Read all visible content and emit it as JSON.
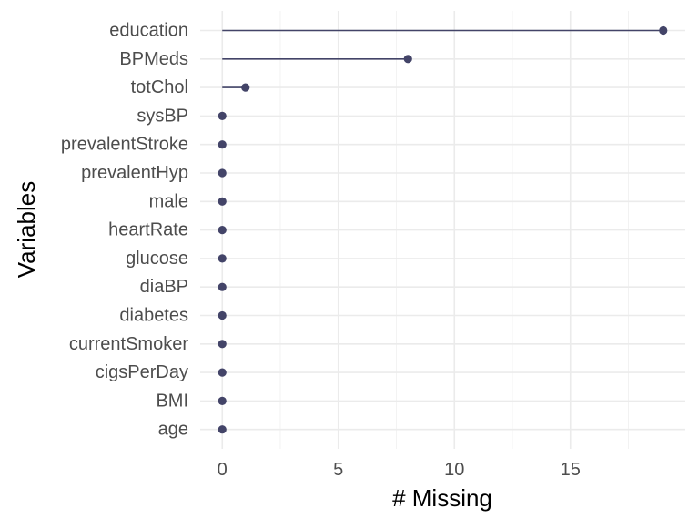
{
  "chart_data": {
    "type": "lollipop",
    "title": "",
    "xlabel": "# Missing",
    "ylabel": "Variables",
    "xlim": [
      -0.95,
      19.95
    ],
    "xticks": [
      0,
      5,
      10,
      15
    ],
    "grid": true,
    "legend": "none",
    "colors": {
      "point": "#434468",
      "segment": "#434468"
    },
    "categories": [
      "education",
      "BPMeds",
      "totChol",
      "sysBP",
      "prevalentStroke",
      "prevalentHyp",
      "male",
      "heartRate",
      "glucose",
      "diaBP",
      "diabetes",
      "currentSmoker",
      "cigsPerDay",
      "BMI",
      "age"
    ],
    "values": [
      19,
      8,
      1,
      0,
      0,
      0,
      0,
      0,
      0,
      0,
      0,
      0,
      0,
      0,
      0
    ]
  }
}
